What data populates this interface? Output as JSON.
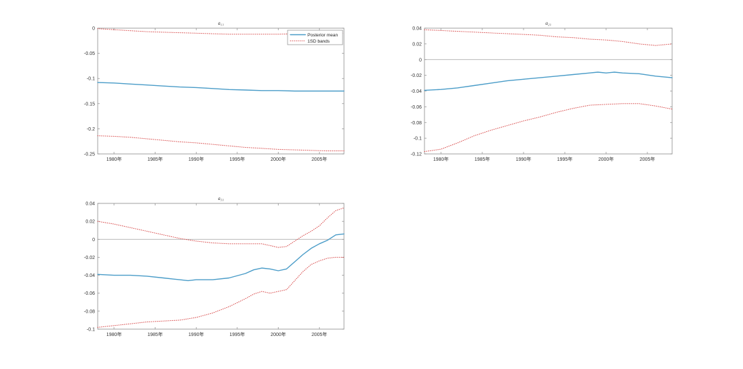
{
  "chart_data": [
    {
      "type": "line",
      "title": "a₁₁",
      "xlim": [
        1978,
        2008
      ],
      "ylim": [
        -0.25,
        0
      ],
      "x_ticks": [
        1980,
        1985,
        1990,
        1995,
        2000,
        2005
      ],
      "x_tick_labels": [
        "1980年",
        "1985年",
        "1990年",
        "1995年",
        "2000年",
        "2005年"
      ],
      "y_ticks": [
        0,
        -0.05,
        -0.1,
        -0.15,
        -0.2,
        -0.25
      ],
      "y_tick_labels": [
        "0",
        "-0.05",
        "-0.1",
        "-0.15",
        "-0.2",
        "-0.25"
      ],
      "zero_line": false,
      "legend": {
        "position": "top-right",
        "entries": [
          "Posterior mean",
          "1SD bands"
        ]
      },
      "series": [
        {
          "name": "Posterior mean",
          "style": "solid",
          "color": "#4a9cc8",
          "x": [
            1978,
            1980,
            1982,
            1984,
            1986,
            1988,
            1990,
            1992,
            1994,
            1996,
            1998,
            2000,
            2002,
            2004,
            2006,
            2008
          ],
          "values": [
            -0.108,
            -0.109,
            -0.111,
            -0.113,
            -0.115,
            -0.117,
            -0.118,
            -0.12,
            -0.122,
            -0.123,
            -0.124,
            -0.124,
            -0.125,
            -0.125,
            -0.125,
            -0.125
          ]
        },
        {
          "name": "1SD bands",
          "style": "dotted",
          "color": "#d94f4f",
          "x": [
            1978,
            1980,
            1982,
            1984,
            1986,
            1988,
            1990,
            1992,
            1994,
            1996,
            1998,
            2000,
            2002,
            2004,
            2006,
            2008
          ],
          "values": [
            -0.001,
            -0.003,
            -0.005,
            -0.007,
            -0.008,
            -0.009,
            -0.01,
            -0.011,
            -0.012,
            -0.012,
            -0.012,
            -0.012,
            -0.011,
            -0.011,
            -0.011,
            -0.01
          ]
        },
        {
          "name": "",
          "style": "dotted",
          "color": "#d94f4f",
          "x": [
            1978,
            1980,
            1982,
            1984,
            1986,
            1988,
            1990,
            1992,
            1994,
            1996,
            1998,
            2000,
            2002,
            2004,
            2006,
            2008
          ],
          "values": [
            -0.214,
            -0.215,
            -0.217,
            -0.22,
            -0.223,
            -0.226,
            -0.228,
            -0.231,
            -0.234,
            -0.237,
            -0.239,
            -0.241,
            -0.242,
            -0.243,
            -0.244,
            -0.244
          ]
        }
      ]
    },
    {
      "type": "line",
      "title": "a₂₁",
      "xlim": [
        1978,
        2008
      ],
      "ylim": [
        -0.12,
        0.04
      ],
      "x_ticks": [
        1980,
        1985,
        1990,
        1995,
        2000,
        2005
      ],
      "x_tick_labels": [
        "1980年",
        "1985年",
        "1990年",
        "1995年",
        "2000年",
        "2005年"
      ],
      "y_ticks": [
        0.04,
        0.02,
        0,
        -0.02,
        -0.04,
        -0.06,
        -0.08,
        -0.1,
        -0.12
      ],
      "y_tick_labels": [
        "0.04",
        "0.02",
        "0",
        "-0.02",
        "-0.04",
        "-0.06",
        "-0.08",
        "-0.1",
        "-0.12"
      ],
      "zero_line": true,
      "series": [
        {
          "name": "Posterior mean",
          "style": "solid",
          "color": "#4a9cc8",
          "x": [
            1978,
            1980,
            1982,
            1984,
            1986,
            1988,
            1990,
            1992,
            1994,
            1996,
            1998,
            1999,
            2000,
            2001,
            2002,
            2004,
            2006,
            2008
          ],
          "values": [
            -0.039,
            -0.038,
            -0.036,
            -0.033,
            -0.03,
            -0.027,
            -0.025,
            -0.023,
            -0.021,
            -0.019,
            -0.017,
            -0.016,
            -0.017,
            -0.016,
            -0.017,
            -0.018,
            -0.021,
            -0.023
          ]
        },
        {
          "name": "1SD bands",
          "style": "dotted",
          "color": "#d94f4f",
          "x": [
            1978,
            1980,
            1982,
            1984,
            1986,
            1988,
            1990,
            1992,
            1994,
            1996,
            1998,
            2000,
            2002,
            2004,
            2006,
            2008
          ],
          "values": [
            0.038,
            0.037,
            0.036,
            0.035,
            0.034,
            0.033,
            0.032,
            0.031,
            0.029,
            0.028,
            0.026,
            0.025,
            0.023,
            0.02,
            0.018,
            0.02
          ]
        },
        {
          "name": "",
          "style": "dotted",
          "color": "#d94f4f",
          "x": [
            1978,
            1980,
            1982,
            1984,
            1986,
            1988,
            1990,
            1992,
            1994,
            1996,
            1998,
            2000,
            2002,
            2004,
            2006,
            2008
          ],
          "values": [
            -0.117,
            -0.114,
            -0.106,
            -0.097,
            -0.09,
            -0.084,
            -0.078,
            -0.073,
            -0.067,
            -0.062,
            -0.058,
            -0.057,
            -0.056,
            -0.056,
            -0.059,
            -0.063
          ]
        }
      ]
    },
    {
      "type": "line",
      "title": "a₃₁",
      "xlim": [
        1978,
        2008
      ],
      "ylim": [
        -0.1,
        0.04
      ],
      "x_ticks": [
        1980,
        1985,
        1990,
        1995,
        2000,
        2005
      ],
      "x_tick_labels": [
        "1980年",
        "1985年",
        "1990年",
        "1995年",
        "2000年",
        "2005年"
      ],
      "y_ticks": [
        0.04,
        0.02,
        0,
        -0.02,
        -0.04,
        -0.06,
        -0.08,
        -0.1
      ],
      "y_tick_labels": [
        "0.04",
        "0.02",
        "0",
        "-0.02",
        "-0.04",
        "-0.06",
        "-0.08",
        "-0.1"
      ],
      "zero_line": true,
      "series": [
        {
          "name": "Posterior mean",
          "style": "solid",
          "color": "#4a9cc8",
          "x": [
            1978,
            1980,
            1982,
            1984,
            1986,
            1988,
            1989,
            1990,
            1992,
            1994,
            1996,
            1997,
            1998,
            1999,
            2000,
            2001,
            2002,
            2003,
            2004,
            2005,
            2006,
            2007,
            2008
          ],
          "values": [
            -0.039,
            -0.04,
            -0.04,
            -0.041,
            -0.043,
            -0.045,
            -0.046,
            -0.045,
            -0.045,
            -0.043,
            -0.038,
            -0.034,
            -0.032,
            -0.033,
            -0.035,
            -0.033,
            -0.025,
            -0.017,
            -0.01,
            -0.005,
            -0.001,
            0.005,
            0.006
          ]
        },
        {
          "name": "1SD bands",
          "style": "dotted",
          "color": "#d94f4f",
          "x": [
            1978,
            1980,
            1982,
            1984,
            1986,
            1988,
            1990,
            1992,
            1994,
            1996,
            1998,
            1999,
            2000,
            2001,
            2002,
            2003,
            2004,
            2005,
            2006,
            2007,
            2008
          ],
          "values": [
            0.02,
            0.017,
            0.013,
            0.009,
            0.005,
            0.001,
            -0.002,
            -0.004,
            -0.005,
            -0.005,
            -0.005,
            -0.007,
            -0.009,
            -0.008,
            -0.002,
            0.004,
            0.009,
            0.015,
            0.024,
            0.032,
            0.035
          ]
        },
        {
          "name": "",
          "style": "dotted",
          "color": "#d94f4f",
          "x": [
            1978,
            1980,
            1982,
            1984,
            1986,
            1988,
            1990,
            1992,
            1994,
            1996,
            1997,
            1998,
            1999,
            2000,
            2001,
            2002,
            2003,
            2004,
            2005,
            2006,
            2007,
            2008
          ],
          "values": [
            -0.098,
            -0.096,
            -0.094,
            -0.092,
            -0.091,
            -0.09,
            -0.087,
            -0.082,
            -0.075,
            -0.066,
            -0.061,
            -0.058,
            -0.06,
            -0.058,
            -0.056,
            -0.046,
            -0.036,
            -0.028,
            -0.024,
            -0.021,
            -0.02,
            -0.02
          ]
        }
      ]
    }
  ]
}
